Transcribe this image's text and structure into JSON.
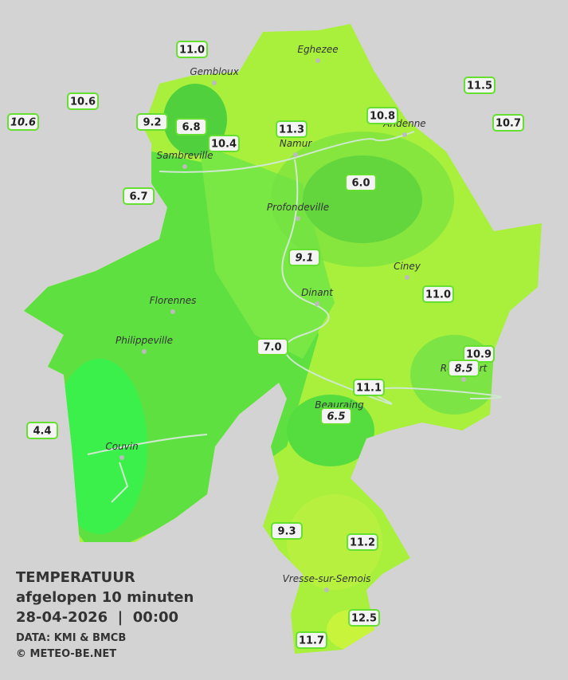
{
  "info": {
    "title": "TEMPERATUUR",
    "subtitle": "afgelopen 10 minuten",
    "timestamp": "28-04-2026  |  00:00",
    "source": "DATA: KMI & BMCB",
    "copyright": "© METEO-BE.NET"
  },
  "cities": [
    "Eghezee",
    "Gembloux",
    "Andenne",
    "Namur",
    "Sambreville",
    "Profondeville",
    "Ciney",
    "Dinant",
    "Florennes",
    "Philippeville",
    "Rochefort",
    "Beauraing",
    "Couvin",
    "Vresse-sur-Semois"
  ],
  "stations": [
    "11.0",
    "11.5",
    "10.6",
    "10.6",
    "9.2",
    "6.8",
    "11.3",
    "10.8",
    "10.7",
    "10.4",
    "6.7",
    "6.0",
    "9.1",
    "11.0",
    "7.0",
    "10.9",
    "8.5",
    "11.1",
    "6.5",
    "4.4",
    "9.3",
    "11.2",
    "12.5",
    "11.7"
  ]
}
